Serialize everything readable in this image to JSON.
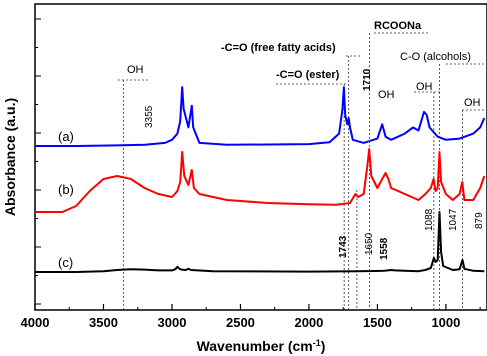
{
  "chart_data": {
    "type": "line",
    "xlabel": "Wavenumber (cm",
    "xlabel_sup": "-1",
    "xlabel_end": ")",
    "ylabel": "Absorbance (a.u.)",
    "xlim": [
      4000,
      700
    ],
    "x_reversed": true,
    "xticks": [
      4000,
      3500,
      3000,
      2500,
      2000,
      1500,
      1000
    ],
    "series": [
      {
        "name": "(a)",
        "color": "#0000ff",
        "points": [
          [
            4000,
            0.0
          ],
          [
            3700,
            0.0
          ],
          [
            3400,
            0.01
          ],
          [
            3200,
            0.02
          ],
          [
            3050,
            0.05
          ],
          [
            3000,
            0.1
          ],
          [
            2960,
            0.2
          ],
          [
            2940,
            0.4
          ],
          [
            2925,
            0.95
          ],
          [
            2915,
            0.6
          ],
          [
            2880,
            0.3
          ],
          [
            2855,
            0.65
          ],
          [
            2845,
            0.3
          ],
          [
            2800,
            0.05
          ],
          [
            2600,
            0.02
          ],
          [
            2000,
            0.03
          ],
          [
            1850,
            0.06
          ],
          [
            1780,
            0.2
          ],
          [
            1755,
            0.6
          ],
          [
            1745,
            0.95
          ],
          [
            1735,
            0.5
          ],
          [
            1720,
            0.35
          ],
          [
            1710,
            0.45
          ],
          [
            1700,
            0.3
          ],
          [
            1680,
            0.1
          ],
          [
            1600,
            0.05
          ],
          [
            1500,
            0.12
          ],
          [
            1465,
            0.35
          ],
          [
            1440,
            0.15
          ],
          [
            1400,
            0.1
          ],
          [
            1300,
            0.2
          ],
          [
            1240,
            0.3
          ],
          [
            1200,
            0.25
          ],
          [
            1160,
            0.55
          ],
          [
            1140,
            0.5
          ],
          [
            1120,
            0.3
          ],
          [
            1100,
            0.25
          ],
          [
            1060,
            0.15
          ],
          [
            1000,
            0.1
          ],
          [
            900,
            0.12
          ],
          [
            800,
            0.2
          ],
          [
            750,
            0.3
          ],
          [
            720,
            0.45
          ]
        ]
      },
      {
        "name": "(b)",
        "color": "#ff0000",
        "points": [
          [
            4000,
            0.0
          ],
          [
            3800,
            0.0
          ],
          [
            3700,
            0.1
          ],
          [
            3600,
            0.35
          ],
          [
            3500,
            0.55
          ],
          [
            3400,
            0.6
          ],
          [
            3300,
            0.55
          ],
          [
            3200,
            0.4
          ],
          [
            3100,
            0.3
          ],
          [
            3000,
            0.25
          ],
          [
            2960,
            0.35
          ],
          [
            2940,
            0.5
          ],
          [
            2925,
            1.0
          ],
          [
            2910,
            0.6
          ],
          [
            2880,
            0.45
          ],
          [
            2855,
            0.7
          ],
          [
            2840,
            0.4
          ],
          [
            2800,
            0.3
          ],
          [
            2600,
            0.2
          ],
          [
            2300,
            0.15
          ],
          [
            2000,
            0.13
          ],
          [
            1800,
            0.12
          ],
          [
            1700,
            0.15
          ],
          [
            1660,
            0.3
          ],
          [
            1640,
            0.25
          ],
          [
            1600,
            0.3
          ],
          [
            1575,
            0.75
          ],
          [
            1560,
            1.05
          ],
          [
            1545,
            0.6
          ],
          [
            1500,
            0.4
          ],
          [
            1465,
            0.55
          ],
          [
            1440,
            0.65
          ],
          [
            1420,
            0.55
          ],
          [
            1400,
            0.4
          ],
          [
            1350,
            0.35
          ],
          [
            1300,
            0.3
          ],
          [
            1200,
            0.2
          ],
          [
            1150,
            0.3
          ],
          [
            1110,
            0.4
          ],
          [
            1090,
            0.55
          ],
          [
            1075,
            0.35
          ],
          [
            1060,
            0.4
          ],
          [
            1047,
            1.0
          ],
          [
            1035,
            0.5
          ],
          [
            1000,
            0.3
          ],
          [
            950,
            0.2
          ],
          [
            900,
            0.3
          ],
          [
            880,
            0.5
          ],
          [
            865,
            0.2
          ],
          [
            800,
            0.2
          ],
          [
            750,
            0.4
          ],
          [
            720,
            0.6
          ]
        ]
      },
      {
        "name": "(c)",
        "color": "#000000",
        "points": [
          [
            4000,
            0.0
          ],
          [
            3700,
            0.0
          ],
          [
            3500,
            0.02
          ],
          [
            3400,
            0.05
          ],
          [
            3300,
            0.07
          ],
          [
            3200,
            0.06
          ],
          [
            3100,
            0.04
          ],
          [
            3000,
            0.04
          ],
          [
            2975,
            0.07
          ],
          [
            2960,
            0.13
          ],
          [
            2945,
            0.08
          ],
          [
            2930,
            0.06
          ],
          [
            2900,
            0.05
          ],
          [
            2880,
            0.08
          ],
          [
            2860,
            0.05
          ],
          [
            2700,
            0.02
          ],
          [
            2000,
            0.01
          ],
          [
            1650,
            0.02
          ],
          [
            1450,
            0.03
          ],
          [
            1400,
            0.05
          ],
          [
            1370,
            0.04
          ],
          [
            1300,
            0.03
          ],
          [
            1200,
            0.02
          ],
          [
            1150,
            0.05
          ],
          [
            1110,
            0.1
          ],
          [
            1088,
            0.35
          ],
          [
            1075,
            0.25
          ],
          [
            1060,
            0.3
          ],
          [
            1047,
            1.5
          ],
          [
            1035,
            0.5
          ],
          [
            1020,
            0.15
          ],
          [
            950,
            0.05
          ],
          [
            900,
            0.07
          ],
          [
            879,
            0.3
          ],
          [
            865,
            0.08
          ],
          [
            800,
            0.03
          ],
          [
            720,
            0.02
          ]
        ]
      }
    ],
    "dashed_markers": [
      3355,
      1743,
      1710,
      1650,
      1558,
      1088,
      1047,
      879
    ]
  },
  "annotations": {
    "oh_3355": "OH",
    "wn_3355": "3355",
    "ester": "-C=O (ester)",
    "ffa": "-C=O (free fatty acids)",
    "rcoona": "RCOONa",
    "co_alc": "C-O (alcohols)",
    "oh_1450": "OH",
    "oh_1100": "OH",
    "oh_879": "OH",
    "wn_1710": "1710",
    "wn_1743": "1743",
    "wn_1650": "1650",
    "wn_1558": "1558",
    "wn_1088": "1088",
    "wn_1047": "1047",
    "wn_879": "879"
  }
}
